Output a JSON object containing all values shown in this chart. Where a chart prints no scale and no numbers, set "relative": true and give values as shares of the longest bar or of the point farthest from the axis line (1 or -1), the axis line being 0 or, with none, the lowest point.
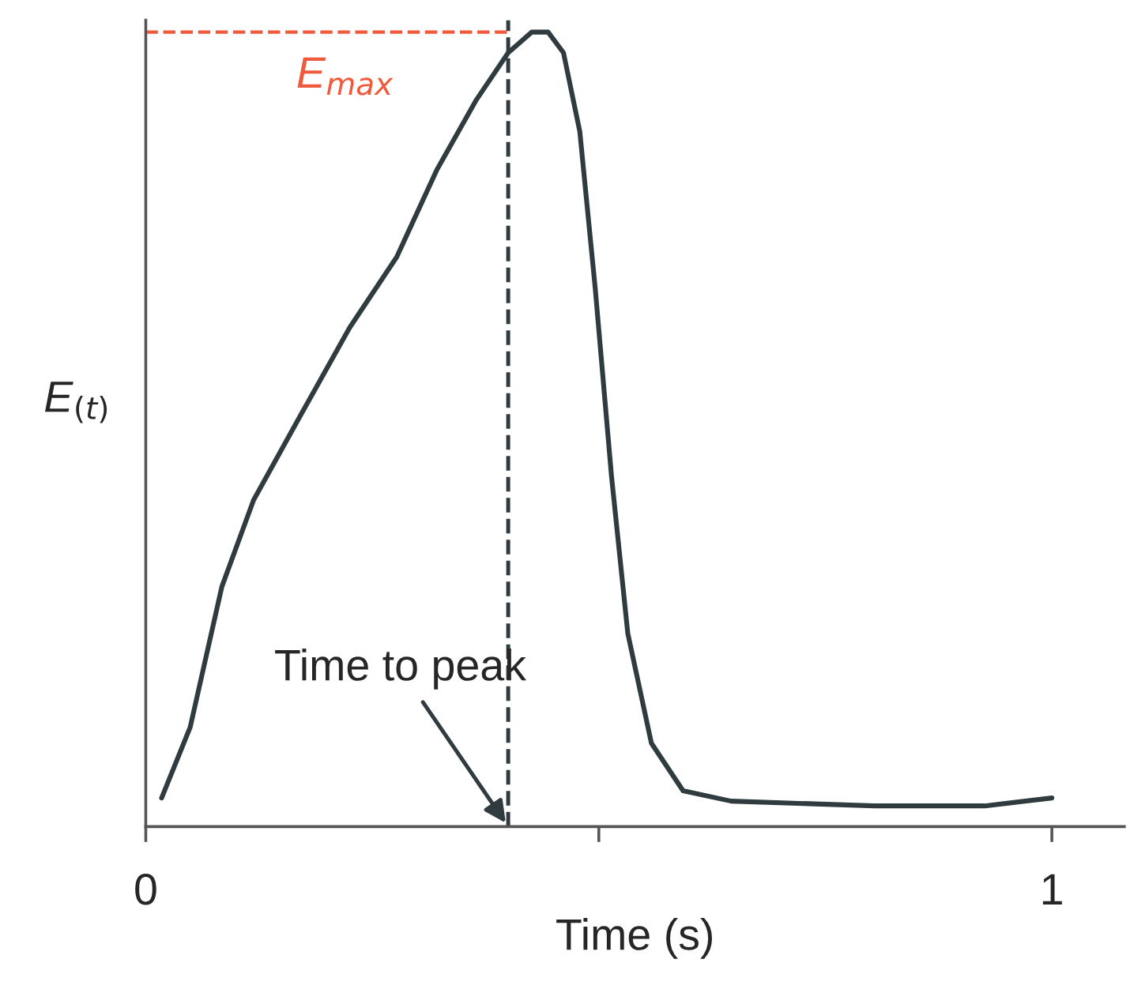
{
  "chart_data": {
    "type": "line",
    "relative": true,
    "xlabel": "Time (s)",
    "ylabel": "E$_{(t)}$",
    "xlim": [
      0,
      1.08
    ],
    "xticks": [
      0,
      {
        "value": 0.5,
        "label": null
      },
      1
    ],
    "x": [
      0.0175,
      0.049,
      0.084,
      0.119,
      0.172,
      0.225,
      0.277,
      0.321,
      0.365,
      0.4,
      0.426,
      0.444,
      0.461,
      0.479,
      0.496,
      0.514,
      0.532,
      0.558,
      0.593,
      0.646,
      0.804,
      0.926,
      1.0
    ],
    "series": [
      {
        "color": "#2f3b3e",
        "values": [
          0.036,
          0.125,
          0.302,
          0.411,
          0.52,
          0.628,
          0.717,
          0.826,
          0.915,
          0.974,
          1.0,
          1.0,
          0.974,
          0.875,
          0.678,
          0.441,
          0.243,
          0.105,
          0.045,
          0.032,
          0.026,
          0.026,
          0.036
        ]
      }
    ],
    "ref_lines": [
      {
        "axis": "x",
        "value": 0.4,
        "color": "#2f3b3e",
        "line_style": "dashed"
      },
      {
        "axis": "y",
        "value": 1.0,
        "label": "E$_{max}$",
        "color": "#f05a3c",
        "line_style": "dashed"
      }
    ],
    "annotations": [
      "Time to peak"
    ],
    "grid": false,
    "legend": false,
    "marker": "none",
    "line_style": "solid"
  }
}
